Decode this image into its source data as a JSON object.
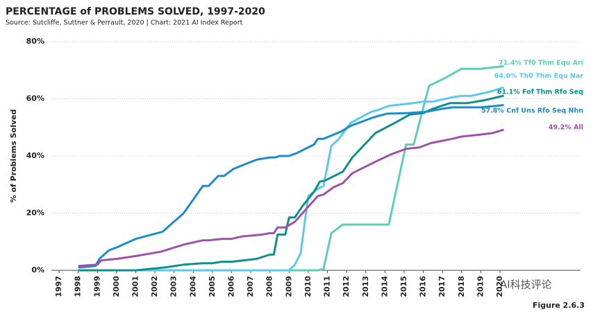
{
  "chart_data": {
    "type": "line",
    "title": "PERCENTAGE of PROBLEMS SOLVED, 1997-2020",
    "subtitle": "Source: Sutcliffe, Suttner & Perrault, 2020 | Chart: 2021 AI Index Report",
    "y_label": "% of Problems Solved",
    "figure_label": "Figure 2.6.3",
    "watermark": "AI科技评论",
    "xlim": [
      1996.6,
      2024.2
    ],
    "xticks": [
      1997,
      1998,
      1999,
      2000,
      2001,
      2002,
      2003,
      2004,
      2005,
      2006,
      2007,
      2008,
      2009,
      2010,
      2011,
      2012,
      2013,
      2014,
      2015,
      2016,
      2017,
      2018,
      2019,
      2020
    ],
    "ylim": [
      0,
      80
    ],
    "yticks": [
      {
        "value": 0,
        "label": "0%"
      },
      {
        "value": 20,
        "label": "20%"
      },
      {
        "value": 40,
        "label": "40%"
      },
      {
        "value": 60,
        "label": "60%"
      },
      {
        "value": 80,
        "label": "80%"
      }
    ],
    "grid": true,
    "series": [
      {
        "name": "71.4% Tf0 Thm Equ Ari",
        "color": "#5ccfb5",
        "x": [
          1998,
          2010.5,
          2010.8,
          2011.2,
          2011.8,
          2013,
          2014.2,
          2015.1,
          2015.5,
          2016.3,
          2017.2,
          2018,
          2019,
          2020.2
        ],
        "values": [
          0,
          0,
          0.5,
          13,
          16,
          16,
          16,
          44,
          44,
          64.5,
          67.5,
          70.5,
          70.5,
          71.4
        ]
      },
      {
        "name": "64.0% Th0 Thm Equ Nar",
        "color": "#5bc8ef",
        "x": [
          1998,
          2009,
          2009.3,
          2009.6,
          2010,
          2010.5,
          2010.8,
          2011.2,
          2011.6,
          2012.2,
          2012.6,
          2013.3,
          2013.6,
          2014.2,
          2015.5,
          2016,
          2016.5,
          2017.5,
          2018,
          2018.5,
          2019.5,
          2020.2
        ],
        "values": [
          0,
          0,
          2,
          6,
          26,
          28.5,
          29.5,
          43.5,
          46,
          51.5,
          53,
          55.5,
          56,
          57.5,
          58.5,
          59,
          59,
          60.5,
          61,
          61,
          62.5,
          64
        ]
      },
      {
        "name": "61.1% Fof Thm Rfo Seq",
        "color": "#0e8f89",
        "x": [
          1998,
          2001,
          2002.5,
          2003.5,
          2004.5,
          2005,
          2005.5,
          2006,
          2007.3,
          2008,
          2008.2,
          2008.4,
          2008.8,
          2009,
          2009.3,
          2009.7,
          2010.3,
          2010.6,
          2010.9,
          2011.8,
          2012.3,
          2013.5,
          2014.5,
          2015.3,
          2016,
          2016.5,
          2017.4,
          2018.3,
          2019.2,
          2020.2
        ],
        "values": [
          0,
          0,
          1,
          2,
          2.5,
          2.5,
          3,
          3,
          4,
          5.5,
          5.5,
          12.5,
          12.5,
          18.5,
          18.5,
          22.5,
          27.5,
          31,
          31.5,
          34.5,
          39.5,
          48,
          51.5,
          54.5,
          55,
          56.5,
          58.5,
          58.5,
          59.5,
          61.1
        ]
      },
      {
        "name": "57.8% Cnf Uns Rfo Seq Nhn",
        "color": "#1b8ccd",
        "x": [
          1998,
          1998.9,
          1999.1,
          1999.6,
          2000,
          2001,
          2002.4,
          2003.5,
          2004.5,
          2004.8,
          2005.3,
          2005.6,
          2006.1,
          2007.3,
          2008,
          2008.3,
          2008.5,
          2009,
          2009.4,
          2010.3,
          2010.5,
          2010.8,
          2011.7,
          2012.2,
          2013,
          2013.4,
          2014.1,
          2015.2,
          2016.2,
          2017,
          2017.5,
          2018.5,
          2019,
          2020.2
        ],
        "values": [
          1,
          1.5,
          4,
          7,
          8,
          11,
          13.5,
          20,
          29.5,
          29.5,
          33,
          33,
          35.5,
          38.7,
          39.5,
          39.5,
          40,
          40,
          41,
          44,
          46,
          46,
          48.5,
          50.5,
          52.5,
          53.5,
          54.8,
          55,
          55.5,
          56.5,
          57,
          57,
          57,
          57.8
        ]
      },
      {
        "name": "49.2% All",
        "color": "#a050ac",
        "x": [
          1998,
          1999,
          1999.2,
          2000,
          2001,
          2002.3,
          2003.5,
          2004.5,
          2004.8,
          2005.5,
          2006,
          2006.5,
          2007.6,
          2008,
          2008.2,
          2008.4,
          2008.8,
          2009.3,
          2010.5,
          2010.8,
          2011.3,
          2011.8,
          2012.3,
          2013.5,
          2014.3,
          2015.1,
          2015.8,
          2016.4,
          2017.5,
          2018,
          2019,
          2019.6,
          2020.2
        ],
        "values": [
          1.5,
          2,
          3.5,
          4,
          5,
          6.5,
          9,
          10.5,
          10.5,
          11,
          11,
          11.8,
          12.5,
          13,
          13,
          15,
          15,
          17,
          26,
          26.5,
          29,
          30.5,
          34,
          38,
          40.5,
          42.5,
          43,
          44.5,
          46,
          46.8,
          47.5,
          48,
          49.2
        ]
      }
    ]
  }
}
